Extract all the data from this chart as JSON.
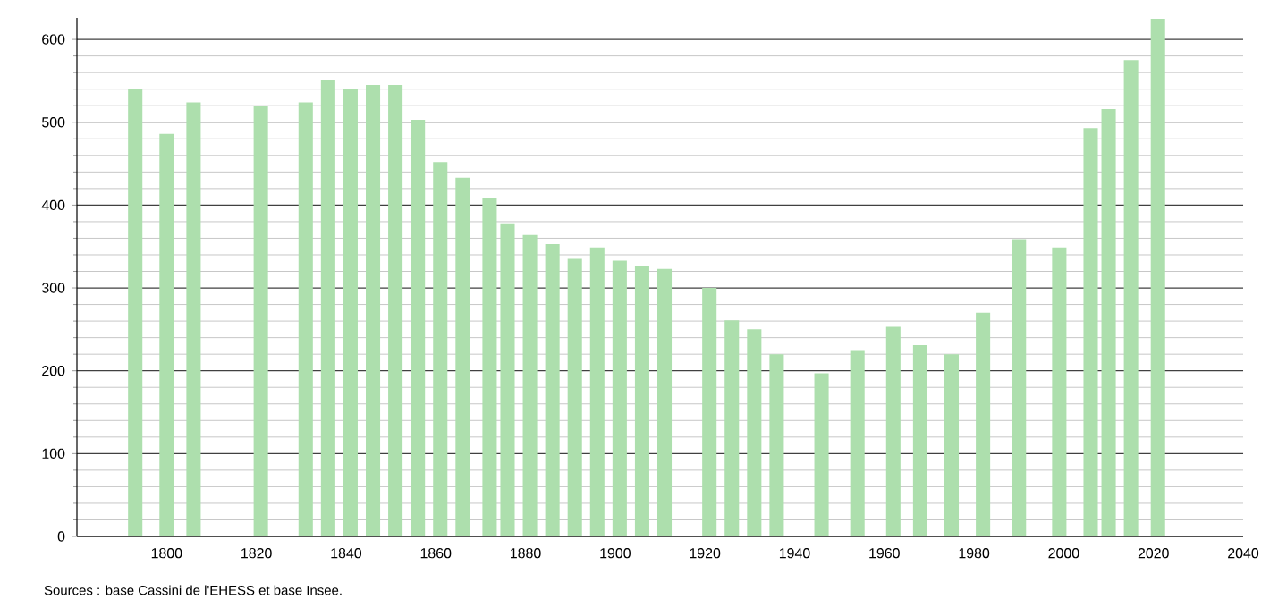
{
  "chart_data": {
    "type": "bar",
    "color": "#addfad",
    "x": [
      1793,
      1800,
      1806,
      1821,
      1831,
      1836,
      1841,
      1846,
      1851,
      1856,
      1861,
      1866,
      1872,
      1876,
      1881,
      1886,
      1891,
      1896,
      1901,
      1906,
      1911,
      1921,
      1926,
      1931,
      1936,
      1946,
      1954,
      1962,
      1968,
      1975,
      1982,
      1990,
      1999,
      2006,
      2010,
      2015,
      2021
    ],
    "values": [
      540,
      486,
      524,
      520,
      524,
      551,
      540,
      545,
      545,
      503,
      452,
      433,
      409,
      378,
      364,
      353,
      335,
      349,
      333,
      326,
      323,
      300,
      261,
      250,
      220,
      197,
      224,
      253,
      231,
      220,
      270,
      359,
      349,
      493,
      516,
      575,
      625
    ],
    "xlim": [
      1780,
      2040
    ],
    "xticks": [
      1800,
      1820,
      1840,
      1860,
      1880,
      1900,
      1920,
      1940,
      1960,
      1980,
      2000,
      2020,
      2040
    ],
    "ylim": [
      0,
      626
    ],
    "yticks": [
      0,
      100,
      200,
      300,
      400,
      500,
      600
    ],
    "grid": "y",
    "annotations": [
      "Sources : base Cassini de l'EHESS et base Insee."
    ]
  }
}
